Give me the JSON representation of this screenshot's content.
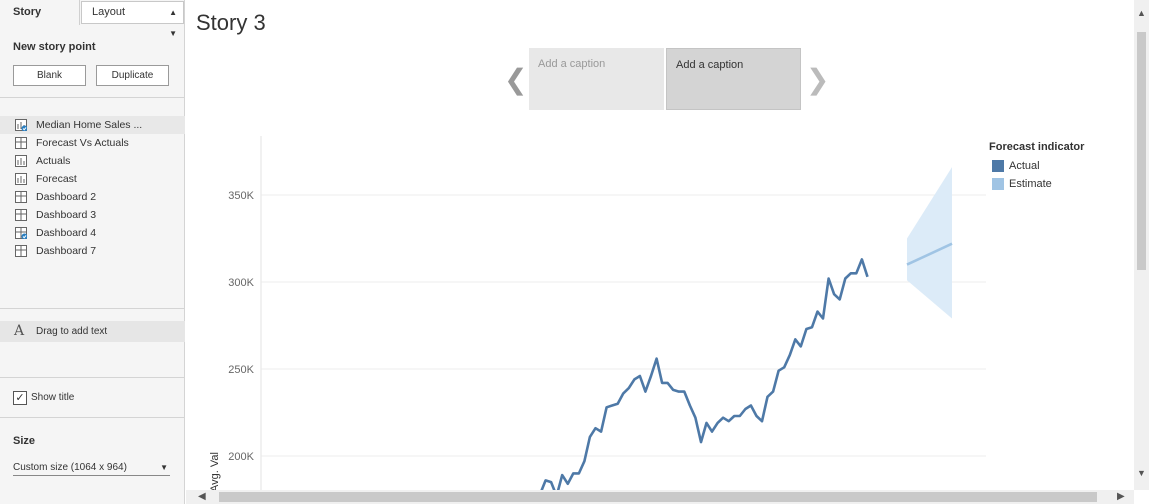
{
  "left_panel": {
    "tabs": {
      "story": "Story",
      "layout": "Layout"
    },
    "new_story_point": "New story point",
    "buttons": {
      "blank": "Blank",
      "duplicate": "Duplicate"
    },
    "sheets": [
      {
        "label": "Median Home Sales ...",
        "icon": "bar-chart-icon",
        "checked": true,
        "selected": true
      },
      {
        "label": "Forecast Vs Actuals",
        "icon": "dashboard-icon",
        "checked": false,
        "selected": false
      },
      {
        "label": "Actuals",
        "icon": "bar-chart-icon",
        "checked": false,
        "selected": false
      },
      {
        "label": "Forecast",
        "icon": "bar-chart-icon",
        "checked": false,
        "selected": false
      },
      {
        "label": "Dashboard 2",
        "icon": "dashboard-icon",
        "checked": false,
        "selected": false
      },
      {
        "label": "Dashboard 3",
        "icon": "dashboard-icon",
        "checked": false,
        "selected": false
      },
      {
        "label": "Dashboard 4",
        "icon": "dashboard-icon",
        "checked": true,
        "selected": false
      },
      {
        "label": "Dashboard 7",
        "icon": "dashboard-icon",
        "checked": false,
        "selected": false
      }
    ],
    "drag_text": "Drag to add text",
    "show_title": {
      "label": "Show title",
      "checked": true
    },
    "size": {
      "label": "Size",
      "value": "Custom size (1064 x 964)"
    }
  },
  "main": {
    "title": "Story 3",
    "captions": [
      {
        "text": "Add a caption",
        "active": false
      },
      {
        "text": "Add a caption",
        "active": true
      }
    ]
  },
  "chart_data": {
    "type": "line",
    "ylabel": "Avg. Val",
    "y_ticks": [
      200000,
      250000,
      300000,
      350000
    ],
    "y_tick_labels": [
      "200K",
      "250K",
      "300K",
      "350K"
    ],
    "ylim": [
      180000,
      380000
    ],
    "grid": true,
    "legend": {
      "title": "Forecast indicator",
      "placement": "right",
      "items": [
        {
          "name": "Actual",
          "color": "#4e79a7"
        },
        {
          "name": "Estimate",
          "color": "#a0c4e4"
        }
      ]
    },
    "series": [
      {
        "name": "Actual",
        "color": "#4e79a7",
        "values": [
          178000,
          186000,
          185000,
          177000,
          189000,
          184000,
          190000,
          190000,
          197000,
          211000,
          216000,
          214000,
          228000,
          229000,
          230000,
          236000,
          239000,
          244000,
          246000,
          237000,
          246000,
          256000,
          242000,
          242000,
          238000,
          237000,
          237000,
          229000,
          222000,
          208000,
          219000,
          214000,
          219000,
          222000,
          220000,
          223000,
          223000,
          227000,
          229000,
          223000,
          220000,
          234000,
          237000,
          249000,
          251000,
          258000,
          267000,
          263000,
          273000,
          274000,
          283000,
          279000,
          302000,
          293000,
          290000,
          302000,
          305000,
          305000,
          313000,
          303000
        ]
      },
      {
        "name": "Estimate",
        "color": "#a0c4e4",
        "values": [
          310000,
          322000
        ],
        "band_upper": [
          325000,
          366000
        ],
        "band_lower": [
          301000,
          279000
        ]
      }
    ]
  },
  "scroll": {
    "up": "▲",
    "down": "▼",
    "left": "◀",
    "right": "▶"
  }
}
